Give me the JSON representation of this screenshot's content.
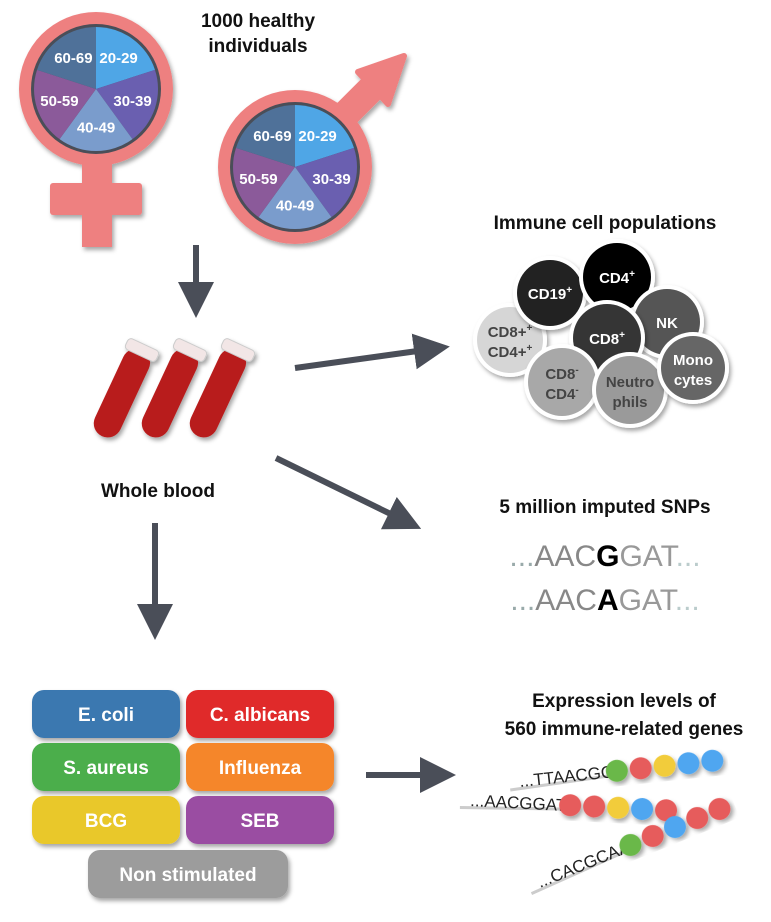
{
  "cohort": {
    "title_line1": "1000 healthy",
    "title_line2": "individuals",
    "age_groups": [
      "20-29",
      "30-39",
      "40-49",
      "50-59",
      "60-69"
    ],
    "age_colors": [
      "#4fa6e6",
      "#6a5fb0",
      "#7a9ccc",
      "#8b5a9a",
      "#4f7199"
    ],
    "symbol_color": "#ee8080"
  },
  "blood": {
    "label": "Whole blood"
  },
  "cells": {
    "title": "Immune cell populations",
    "populations": [
      {
        "label": "CD8+",
        "label2": "CD4+",
        "sup1": "+",
        "sup2": "+",
        "color": "#d6d6d6"
      },
      {
        "label": "CD19",
        "sup": "+",
        "color": "#222222"
      },
      {
        "label": "CD4",
        "sup": "+",
        "color": "#000000"
      },
      {
        "label": "NK",
        "color": "#555555"
      },
      {
        "label": "CD8",
        "sup": "+",
        "color": "#353535"
      },
      {
        "label": "CD8",
        "label2": "CD4",
        "sup1": "-",
        "sup2": "-",
        "color": "#a8a8a8"
      },
      {
        "label": "Neutro",
        "label2": "phils",
        "color": "#9a9a9a"
      },
      {
        "label": "Mono",
        "label2": "cytes",
        "color": "#666666"
      }
    ]
  },
  "snps": {
    "title": "5 million imputed SNPs",
    "line1": {
      "prefix": "...",
      "left": "AAC",
      "variant": "G",
      "right": "GAT",
      "suffix": "..."
    },
    "line2": {
      "prefix": "...",
      "left": "AAC",
      "variant": "A",
      "right": "GAT",
      "suffix": "..."
    }
  },
  "stimuli": [
    {
      "label": "E. coli",
      "color": "#3a78b0"
    },
    {
      "label": "C. albicans",
      "color": "#e02a2a"
    },
    {
      "label": "S. aureus",
      "color": "#4cae4c"
    },
    {
      "label": "Influenza",
      "color": "#f5862a"
    },
    {
      "label": "BCG",
      "color": "#e9c82c"
    },
    {
      "label": "SEB",
      "color": "#9a4ea2"
    },
    {
      "label": "Non stimulated",
      "color": "#9c9c9c"
    }
  ],
  "expression": {
    "title_line1": "Expression levels of",
    "title_line2": "560 immune-related genes",
    "strands": [
      {
        "seq": "...TTAACGG",
        "beads": [
          "#6ab84a",
          "#e65c5c",
          "#f2cc3a",
          "#4fa6f0",
          "#4fa6f0"
        ]
      },
      {
        "seq": "...AACGGAT",
        "beads": [
          "#e65c5c",
          "#e65c5c",
          "#f2cc3a",
          "#4fa6f0",
          "#e65c5c"
        ]
      },
      {
        "seq": "...CACGCAA",
        "beads": [
          "#6ab84a",
          "#e65c5c",
          "#4fa6f0",
          "#e65c5c",
          "#e65c5c"
        ]
      }
    ]
  }
}
